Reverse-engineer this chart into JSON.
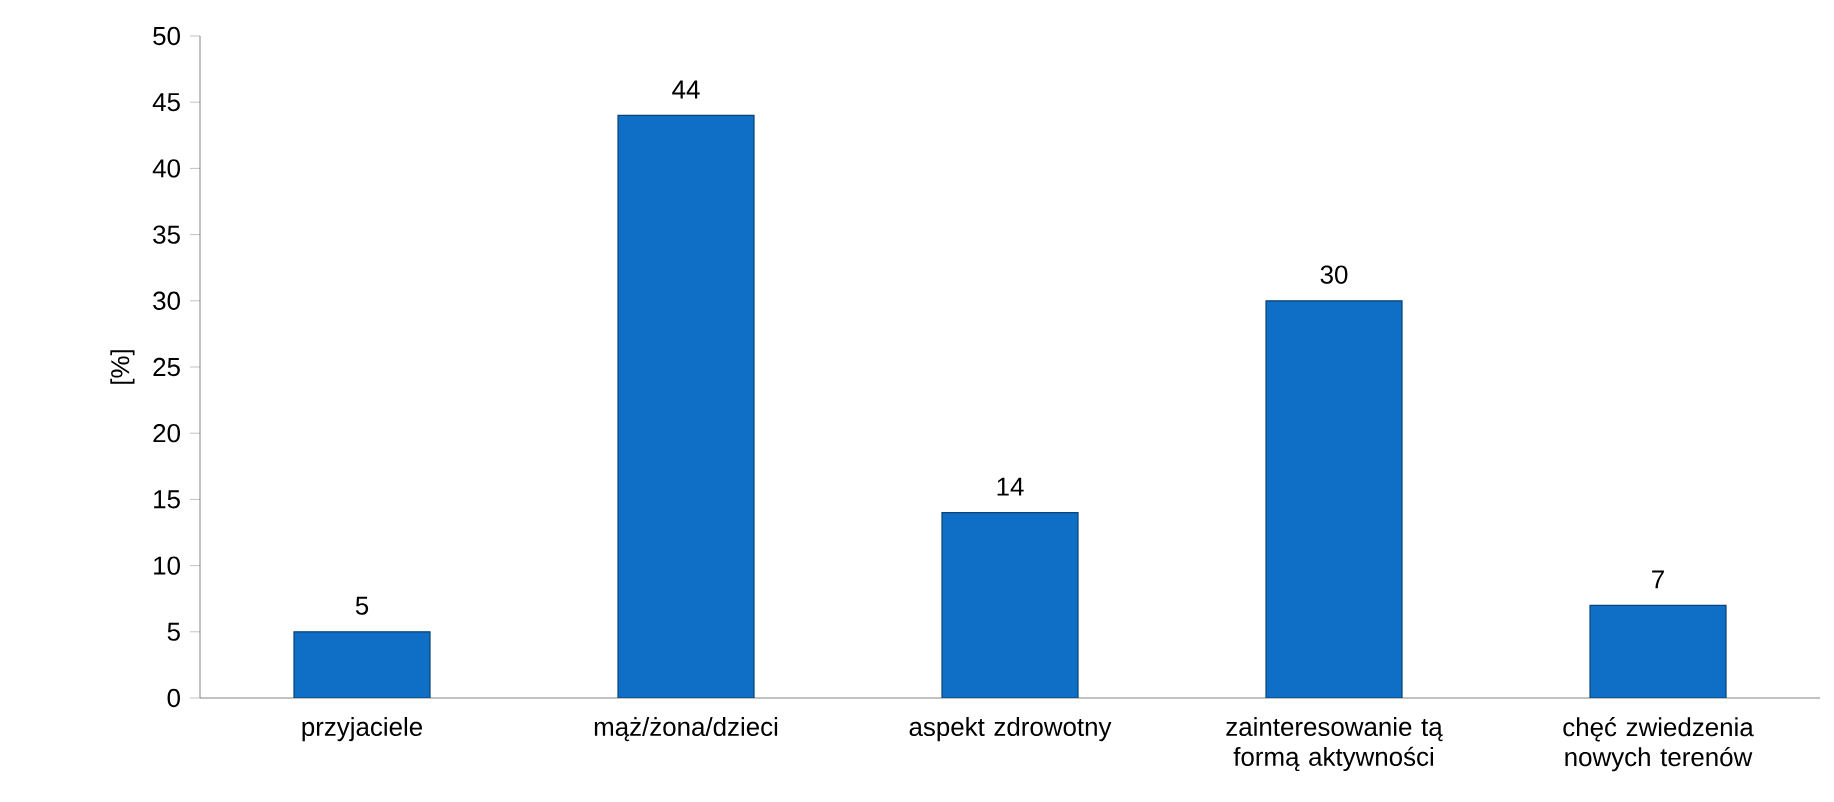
{
  "chart_data": {
    "type": "bar",
    "ylabel": "[%]",
    "categories": [
      "przyjaciele",
      "mąż/żona/dzieci",
      "aspekt zdrowotny",
      "zainteresowanie tą formą aktywności",
      "chęć zwiedzenia nowych terenów"
    ],
    "values": [
      5,
      44,
      14,
      30,
      7
    ],
    "color": "#0f6fc6",
    "ylim": [
      0,
      50
    ],
    "yticks": [
      0,
      5,
      10,
      15,
      20,
      25,
      30,
      35,
      40,
      45,
      50
    ],
    "data_labels": true
  }
}
